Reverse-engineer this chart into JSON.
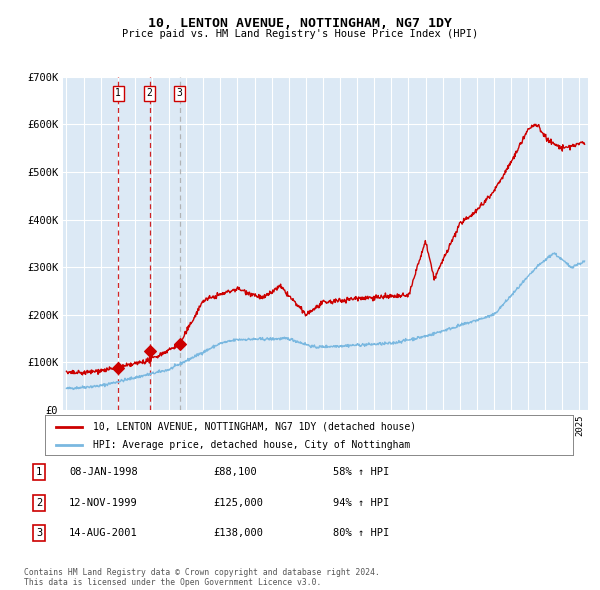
{
  "title": "10, LENTON AVENUE, NOTTINGHAM, NG7 1DY",
  "subtitle": "Price paid vs. HM Land Registry's House Price Index (HPI)",
  "fig_bg_color": "#ffffff",
  "plot_bg_color": "#dce9f5",
  "hpi_color": "#7ab8e0",
  "price_color": "#cc0000",
  "sales": [
    {
      "date_num": 1998.03,
      "price": 88100,
      "label": "1",
      "vcolor": "#cc0000",
      "vstyle": "dashed"
    },
    {
      "date_num": 1999.87,
      "price": 125000,
      "label": "2",
      "vcolor": "#cc0000",
      "vstyle": "dashed"
    },
    {
      "date_num": 2001.62,
      "price": 138000,
      "label": "3",
      "vcolor": "#aaaaaa",
      "vstyle": "dashed"
    }
  ],
  "sale_table": [
    {
      "num": "1",
      "date": "08-JAN-1998",
      "price": "£88,100",
      "hpi": "58% ↑ HPI"
    },
    {
      "num": "2",
      "date": "12-NOV-1999",
      "price": "£125,000",
      "hpi": "94% ↑ HPI"
    },
    {
      "num": "3",
      "date": "14-AUG-2001",
      "price": "£138,000",
      "hpi": "80% ↑ HPI"
    }
  ],
  "legend_line1": "10, LENTON AVENUE, NOTTINGHAM, NG7 1DY (detached house)",
  "legend_line2": "HPI: Average price, detached house, City of Nottingham",
  "footer": "Contains HM Land Registry data © Crown copyright and database right 2024.\nThis data is licensed under the Open Government Licence v3.0.",
  "ylim": [
    0,
    700000
  ],
  "yticks": [
    0,
    100000,
    200000,
    300000,
    400000,
    500000,
    600000,
    700000
  ],
  "ytick_labels": [
    "£0",
    "£100K",
    "£200K",
    "£300K",
    "£400K",
    "£500K",
    "£600K",
    "£700K"
  ],
  "xlim_start": 1994.8,
  "xlim_end": 2025.5
}
